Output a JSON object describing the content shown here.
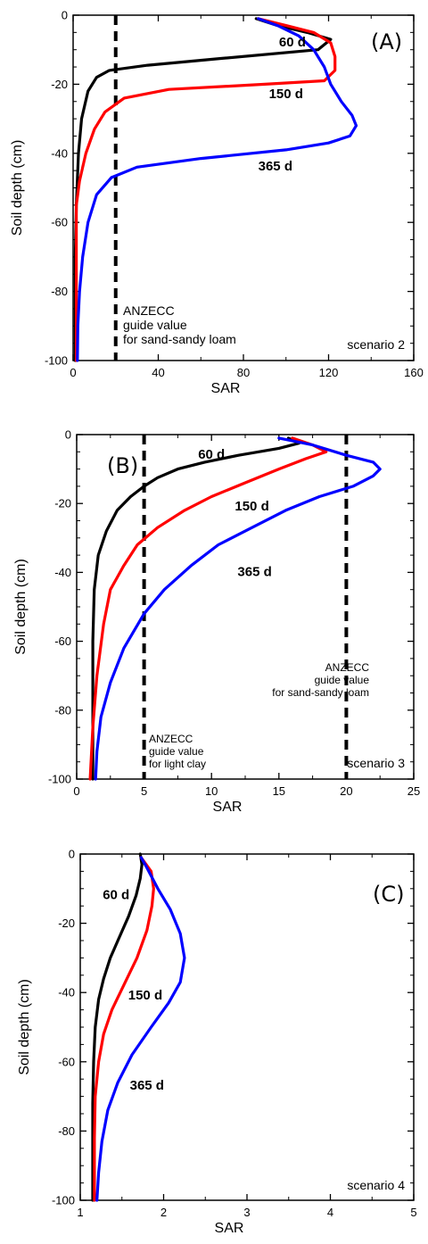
{
  "colors": {
    "60 d": "#000000",
    "150 d": "#ff0000",
    "365 d": "#0000ff",
    "guide_line": "#000000"
  },
  "chart_data": [
    {
      "type": "line",
      "panel_label": "(A)",
      "scenario": "scenario 2",
      "xlabel": "SAR",
      "ylabel": "Soil depth (cm)",
      "xlim": [
        0,
        160
      ],
      "ylim": [
        -100,
        0
      ],
      "xticks": [
        0,
        40,
        80,
        120,
        160
      ],
      "yticks": [
        0,
        -20,
        -40,
        -60,
        -80,
        -100
      ],
      "grid": false,
      "series": [
        {
          "name": "60 d",
          "points": [
            [
              86,
              -1
            ],
            [
              96,
              -3
            ],
            [
              110,
              -5
            ],
            [
              121,
              -7
            ],
            [
              115,
              -10
            ],
            [
              70,
              -12.5
            ],
            [
              35,
              -14.5
            ],
            [
              17,
              -16
            ],
            [
              11,
              -18
            ],
            [
              7,
              -22
            ],
            [
              4,
              -30
            ],
            [
              2.5,
              -40
            ],
            [
              1.5,
              -55
            ],
            [
              1,
              -70
            ],
            [
              1,
              -100
            ]
          ]
        },
        {
          "name": "150 d",
          "points": [
            [
              87,
              -1
            ],
            [
              100,
              -3
            ],
            [
              113,
              -5
            ],
            [
              121,
              -8
            ],
            [
              123,
              -12
            ],
            [
              123,
              -16
            ],
            [
              118,
              -19
            ],
            [
              90,
              -20
            ],
            [
              45,
              -21.5
            ],
            [
              24,
              -24
            ],
            [
              15,
              -28
            ],
            [
              10,
              -33
            ],
            [
              6,
              -40
            ],
            [
              3,
              -48
            ],
            [
              1.5,
              -55
            ],
            [
              1.5,
              -100
            ]
          ]
        },
        {
          "name": "365 d",
          "points": [
            [
              87,
              -1
            ],
            [
              96,
              -3
            ],
            [
              106,
              -6
            ],
            [
              113,
              -10
            ],
            [
              118,
              -15
            ],
            [
              121,
              -20
            ],
            [
              126,
              -25
            ],
            [
              131,
              -29
            ],
            [
              133,
              -32
            ],
            [
              130,
              -35
            ],
            [
              120,
              -37
            ],
            [
              100,
              -39
            ],
            [
              60,
              -41.5
            ],
            [
              30,
              -44
            ],
            [
              18,
              -47
            ],
            [
              11,
              -52
            ],
            [
              7,
              -60
            ],
            [
              4.5,
              -70
            ],
            [
              3,
              -80
            ],
            [
              2.2,
              -90
            ],
            [
              2,
              -100
            ]
          ]
        }
      ],
      "guide_lines": [
        {
          "x": 20,
          "label": [
            "ANZECC",
            "guide value",
            "for sand-sandy loam"
          ]
        }
      ]
    },
    {
      "type": "line",
      "panel_label": "(B)",
      "scenario": "scenario 3",
      "xlabel": "SAR",
      "ylabel": "Soil depth (cm)",
      "xlim": [
        0,
        25
      ],
      "ylim": [
        -100,
        0
      ],
      "xticks": [
        0,
        5,
        10,
        15,
        20,
        25
      ],
      "yticks": [
        0,
        -20,
        -40,
        -60,
        -80,
        -100
      ],
      "grid": false,
      "series": [
        {
          "name": "60 d",
          "points": [
            [
              15.7,
              -1
            ],
            [
              16.5,
              -2.5
            ],
            [
              15,
              -4
            ],
            [
              12,
              -6
            ],
            [
              9.5,
              -8
            ],
            [
              7.5,
              -10
            ],
            [
              6,
              -12.5
            ],
            [
              5,
              -15
            ],
            [
              4,
              -18
            ],
            [
              3,
              -22
            ],
            [
              2.2,
              -28
            ],
            [
              1.6,
              -35
            ],
            [
              1.3,
              -45
            ],
            [
              1.2,
              -60
            ],
            [
              1.2,
              -80
            ],
            [
              1.2,
              -100
            ]
          ]
        },
        {
          "name": "150 d",
          "points": [
            [
              16,
              -1
            ],
            [
              17.5,
              -3
            ],
            [
              18.5,
              -5
            ],
            [
              17,
              -7
            ],
            [
              15,
              -10
            ],
            [
              12.5,
              -14
            ],
            [
              10,
              -18
            ],
            [
              8,
              -22
            ],
            [
              6,
              -27
            ],
            [
              4.5,
              -32
            ],
            [
              3.5,
              -38
            ],
            [
              2.5,
              -45
            ],
            [
              2,
              -55
            ],
            [
              1.5,
              -70
            ],
            [
              1.2,
              -85
            ],
            [
              1,
              -100
            ]
          ]
        },
        {
          "name": "365 d",
          "points": [
            [
              15,
              -1
            ],
            [
              17.5,
              -3
            ],
            [
              20,
              -6
            ],
            [
              22,
              -8
            ],
            [
              22.5,
              -10
            ],
            [
              22,
              -12
            ],
            [
              20.5,
              -15
            ],
            [
              18,
              -18
            ],
            [
              15.5,
              -22
            ],
            [
              13,
              -27
            ],
            [
              10.5,
              -32
            ],
            [
              8.5,
              -38
            ],
            [
              6.5,
              -45
            ],
            [
              5,
              -52
            ],
            [
              3.5,
              -62
            ],
            [
              2.5,
              -72
            ],
            [
              1.8,
              -82
            ],
            [
              1.5,
              -92
            ],
            [
              1.4,
              -100
            ]
          ]
        }
      ],
      "guide_lines": [
        {
          "x": 5,
          "label": [
            "ANZECC",
            "guide value",
            "for light clay"
          ]
        },
        {
          "x": 20,
          "label": [
            "ANZECC",
            "guide value",
            "for sand-sandy loam"
          ]
        }
      ]
    },
    {
      "type": "line",
      "panel_label": "(C)",
      "scenario": "scenario 4",
      "xlabel": "SAR",
      "ylabel": "Soil depth (cm)",
      "xlim": [
        1,
        5
      ],
      "ylim": [
        -100,
        0
      ],
      "xticks": [
        1,
        2,
        3,
        4,
        5
      ],
      "yticks": [
        0,
        -20,
        -40,
        -60,
        -80,
        -100
      ],
      "grid": false,
      "series": [
        {
          "name": "60 d",
          "points": [
            [
              1.72,
              0
            ],
            [
              1.74,
              -3
            ],
            [
              1.72,
              -7
            ],
            [
              1.67,
              -12
            ],
            [
              1.58,
              -18
            ],
            [
              1.47,
              -24
            ],
            [
              1.36,
              -30
            ],
            [
              1.28,
              -36
            ],
            [
              1.22,
              -42
            ],
            [
              1.18,
              -50
            ],
            [
              1.16,
              -60
            ],
            [
              1.15,
              -72
            ],
            [
              1.15,
              -84
            ],
            [
              1.15,
              -100
            ]
          ]
        },
        {
          "name": "150 d",
          "points": [
            [
              1.73,
              -1
            ],
            [
              1.85,
              -5
            ],
            [
              1.88,
              -10
            ],
            [
              1.86,
              -15
            ],
            [
              1.8,
              -22
            ],
            [
              1.68,
              -30
            ],
            [
              1.52,
              -38
            ],
            [
              1.38,
              -45
            ],
            [
              1.28,
              -52
            ],
            [
              1.22,
              -60
            ],
            [
              1.18,
              -70
            ],
            [
              1.17,
              -82
            ],
            [
              1.17,
              -100
            ]
          ]
        },
        {
          "name": "365 d",
          "points": [
            [
              1.73,
              -1
            ],
            [
              1.8,
              -4
            ],
            [
              1.93,
              -10
            ],
            [
              2.08,
              -16
            ],
            [
              2.2,
              -23
            ],
            [
              2.25,
              -30
            ],
            [
              2.2,
              -37
            ],
            [
              2.06,
              -43
            ],
            [
              1.85,
              -50
            ],
            [
              1.62,
              -58
            ],
            [
              1.45,
              -66
            ],
            [
              1.33,
              -74
            ],
            [
              1.26,
              -83
            ],
            [
              1.22,
              -92
            ],
            [
              1.2,
              -100
            ]
          ]
        }
      ],
      "guide_lines": []
    }
  ],
  "series_labels": [
    {
      "panel": 0,
      "text": "60 d",
      "x": 103,
      "y": -9
    },
    {
      "panel": 0,
      "text": "150 d",
      "x": 100,
      "y": -24
    },
    {
      "panel": 0,
      "text": "365 d",
      "x": 95,
      "y": -45
    },
    {
      "panel": 1,
      "text": "60 d",
      "x": 10,
      "y": -7
    },
    {
      "panel": 1,
      "text": "150 d",
      "x": 13,
      "y": -22
    },
    {
      "panel": 1,
      "text": "365 d",
      "x": 13.2,
      "y": -41
    },
    {
      "panel": 2,
      "text": "60 d",
      "x": 1.43,
      "y": -13
    },
    {
      "panel": 2,
      "text": "150 d",
      "x": 1.78,
      "y": -42
    },
    {
      "panel": 2,
      "text": "365 d",
      "x": 1.8,
      "y": -68
    }
  ]
}
